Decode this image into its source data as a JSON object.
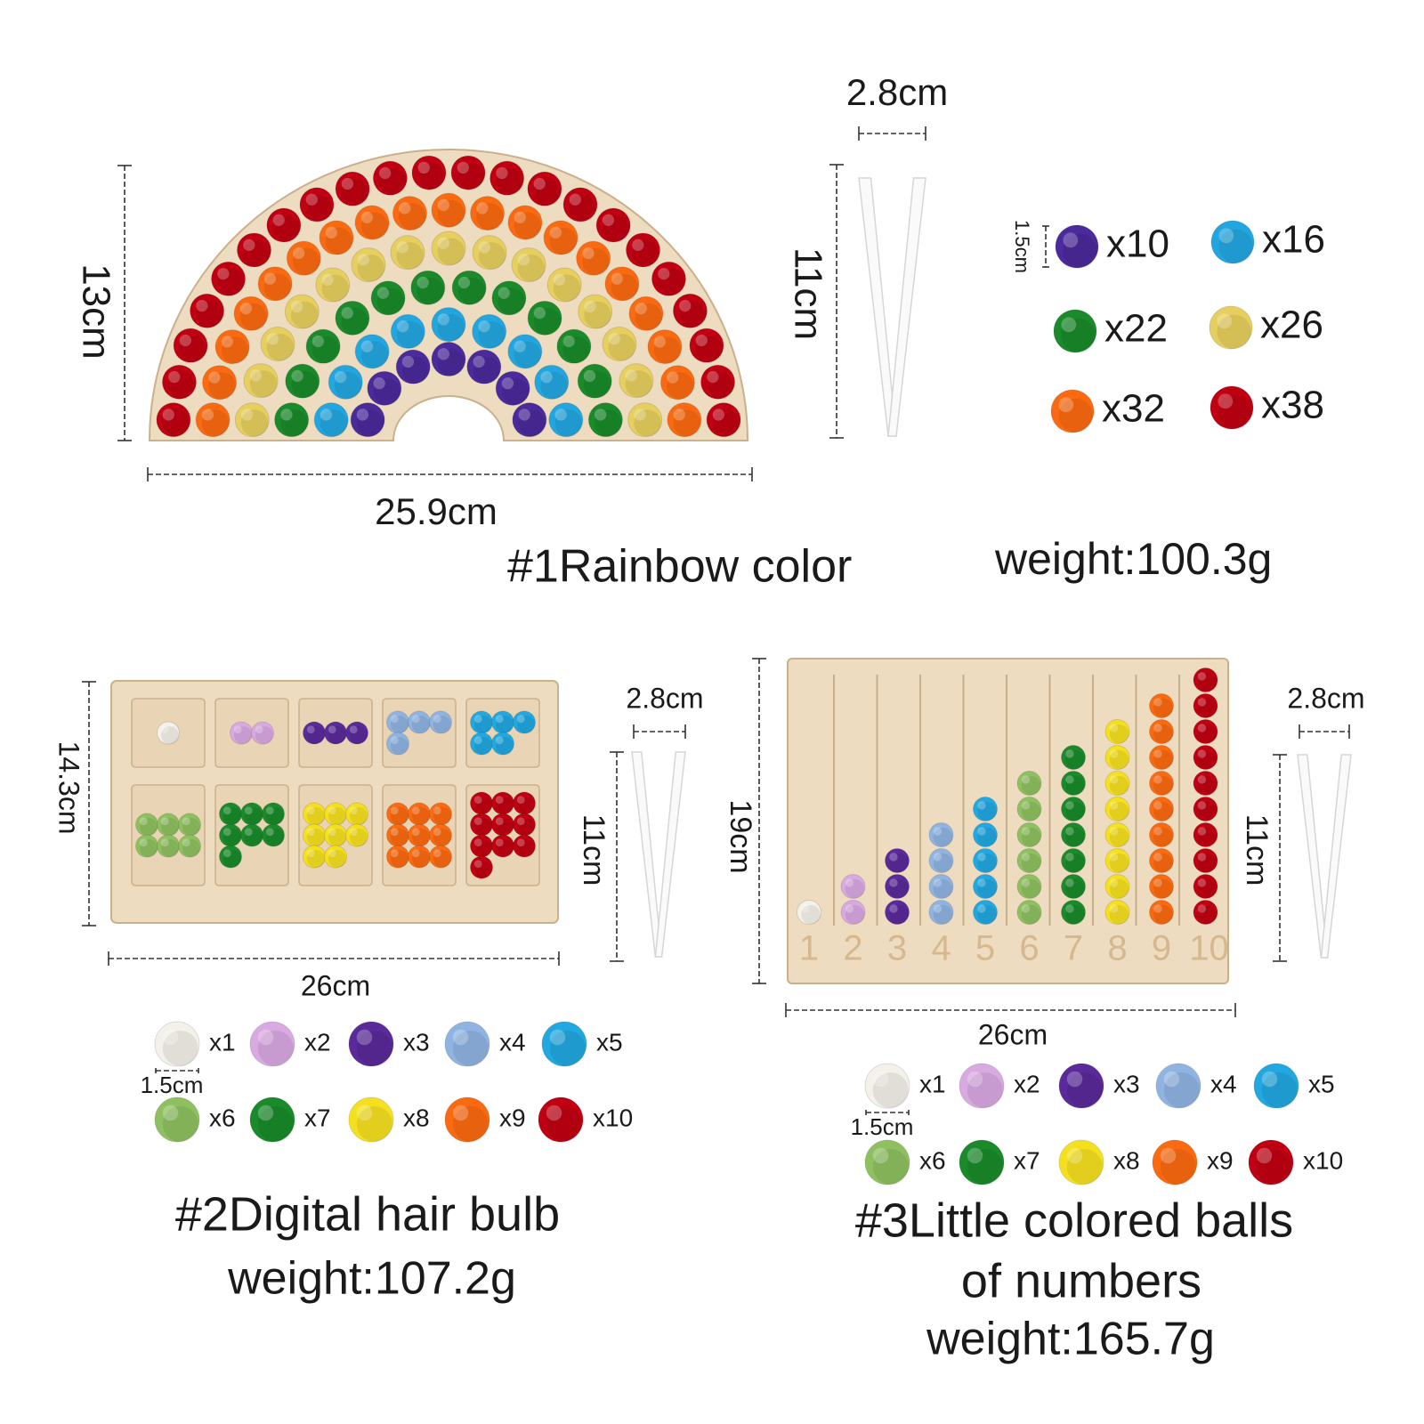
{
  "products": [
    {
      "title": [
        "#1Rainbow color"
      ],
      "weight": "weight:100.3g",
      "height": "13cm",
      "width": "25.9cm",
      "tweezer_width": "2.8cm",
      "tweezer_length": "11cm",
      "ball_size": "1.5cm",
      "balls": [
        {
          "count": "x10",
          "color": "#4b2a9c"
        },
        {
          "count": "x16",
          "color": "#22a6e0"
        },
        {
          "count": "x22",
          "color": "#1a8a2a"
        },
        {
          "count": "x26",
          "color": "#e6cf5e"
        },
        {
          "count": "x32",
          "color": "#fb6a10"
        },
        {
          "count": "x38",
          "color": "#c00012"
        }
      ]
    },
    {
      "title": [
        "#2Digital hair bulb"
      ],
      "weight": "weight:107.2g",
      "height": "14.3cm",
      "width": "26cm",
      "tweezer_width": "2.8cm",
      "tweezer_length": "11cm",
      "ball_size": "1.5cm",
      "balls": [
        {
          "count": "x1",
          "color": "#f4f1ea"
        },
        {
          "count": "x2",
          "color": "#d9a9e2"
        },
        {
          "count": "x3",
          "color": "#5a2a9a"
        },
        {
          "count": "x4",
          "color": "#8fb4e2"
        },
        {
          "count": "x5",
          "color": "#22a8e0"
        },
        {
          "count": "x6",
          "color": "#8fc060"
        },
        {
          "count": "x7",
          "color": "#1a8a2a"
        },
        {
          "count": "x8",
          "color": "#f5e020"
        },
        {
          "count": "x9",
          "color": "#fb6a10"
        },
        {
          "count": "x10",
          "color": "#c00012"
        }
      ]
    },
    {
      "title": [
        "#3Little colored balls",
        "of numbers"
      ],
      "weight": "weight:165.7g",
      "height": "19cm",
      "width": "26cm",
      "tweezer_width": "2.8cm",
      "tweezer_length": "11cm",
      "ball_size": "1.5cm",
      "balls": [
        {
          "count": "x1",
          "color": "#f4f1ea"
        },
        {
          "count": "x2",
          "color": "#d9a9e2"
        },
        {
          "count": "x3",
          "color": "#5a2a9a"
        },
        {
          "count": "x4",
          "color": "#8fb4e2"
        },
        {
          "count": "x5",
          "color": "#22a8e0"
        },
        {
          "count": "x6",
          "color": "#8fc060"
        },
        {
          "count": "x7",
          "color": "#1a8a2a"
        },
        {
          "count": "x8",
          "color": "#f5e020"
        },
        {
          "count": "x9",
          "color": "#fb6a10"
        },
        {
          "count": "x10",
          "color": "#c00012"
        }
      ],
      "board_numbers": [
        "1",
        "2",
        "3",
        "4",
        "5",
        "6",
        "7",
        "8",
        "9",
        "10"
      ]
    }
  ]
}
